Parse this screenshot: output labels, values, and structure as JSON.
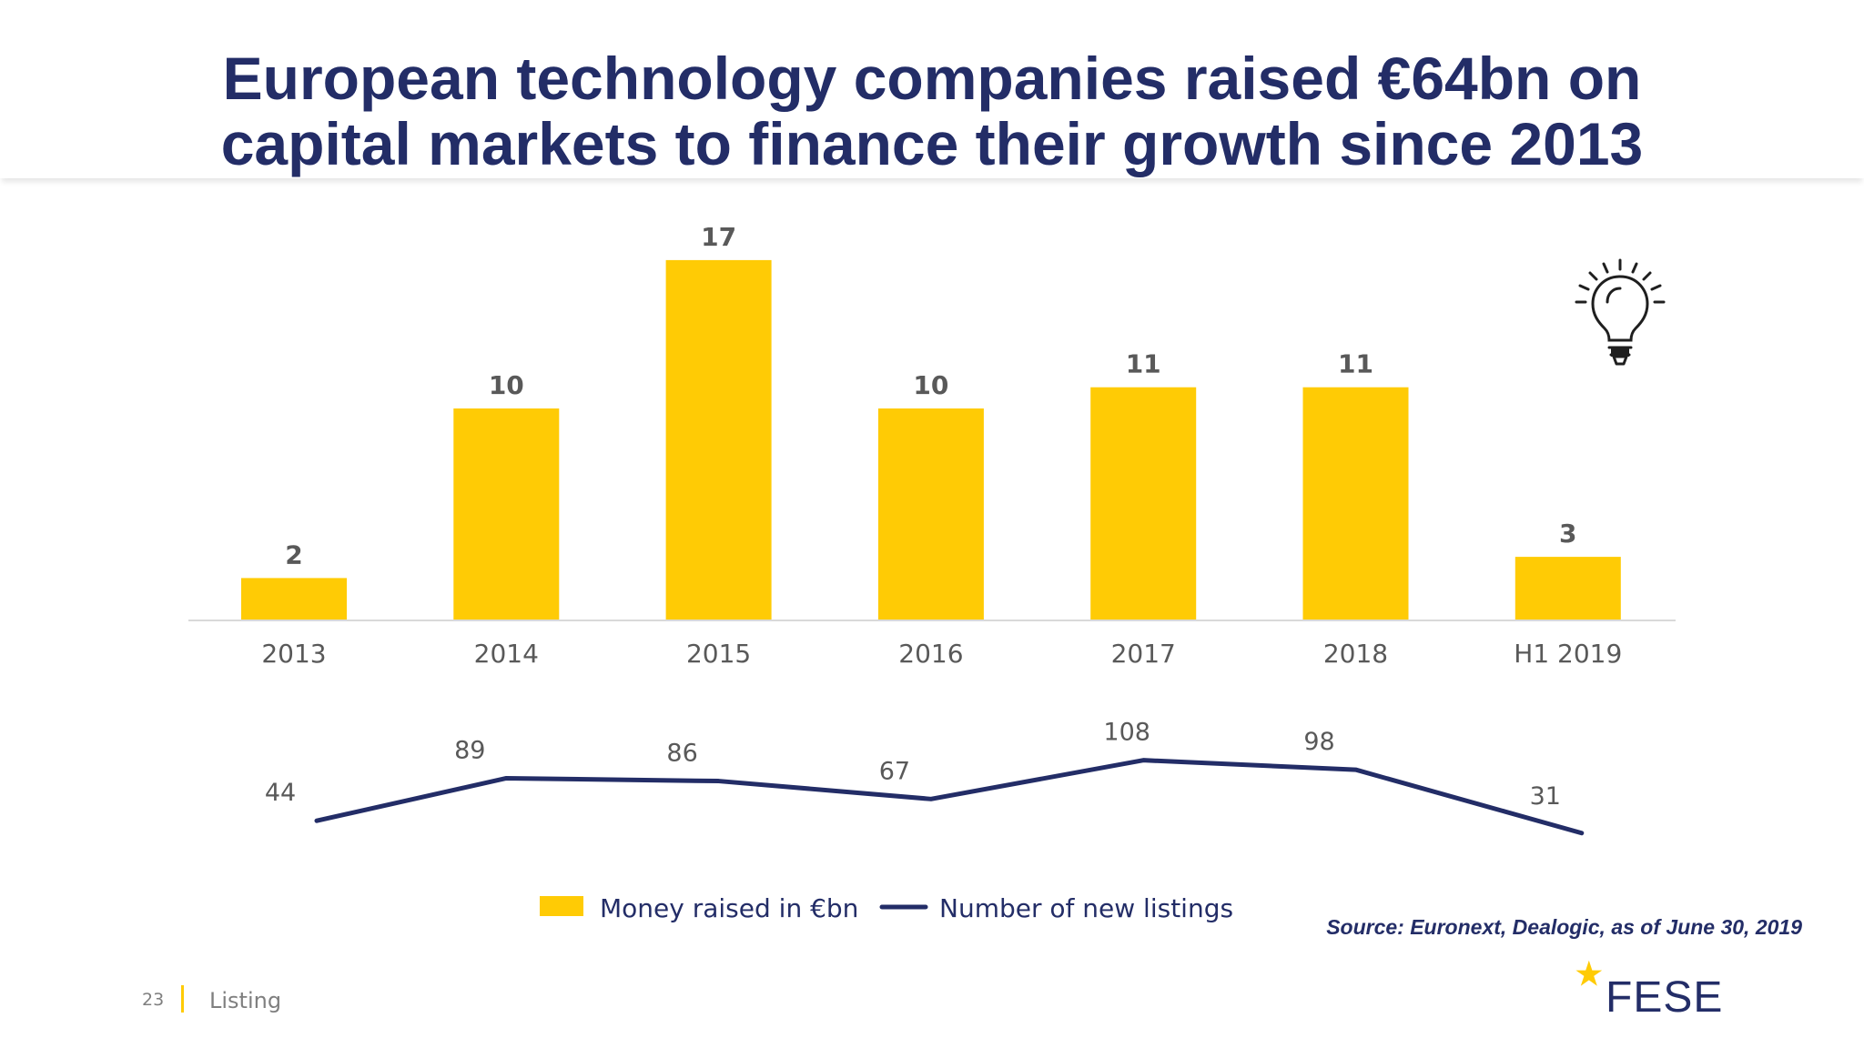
{
  "title": {
    "line1": "European technology companies raised €64bn on",
    "line2": "capital markets to finance their growth since 2013"
  },
  "chart_data": {
    "type": "bar",
    "categories": [
      "2013",
      "2014",
      "2015",
      "2016",
      "2017",
      "2018",
      "H1 2019"
    ],
    "series": [
      {
        "name": "Money raised in €bn",
        "type": "bar",
        "color": "#ffcb05",
        "values": [
          2,
          10,
          17,
          10,
          11,
          11,
          3
        ],
        "labels": [
          "2",
          "10",
          "17",
          "10",
          "11",
          "11",
          "3"
        ]
      },
      {
        "name": "Number of new listings",
        "type": "line",
        "color": "#232d67",
        "values": [
          44,
          89,
          86,
          67,
          108,
          98,
          31
        ],
        "labels": [
          "44",
          "89",
          "86",
          "67",
          "108",
          "98",
          "31"
        ]
      }
    ],
    "legend": {
      "placement": "bottom-center",
      "items": [
        "Money raised in €bn",
        "Number of new listings"
      ]
    }
  },
  "source": "Source: Euronext, Dealogic, as of June 30, 2019",
  "footer": {
    "page_number": "23",
    "section": "Listing"
  },
  "logo": {
    "text": "FESE"
  },
  "icons": {
    "idea": "lightbulb-icon",
    "logo_star": "star-icon"
  },
  "colors": {
    "title": "#232d67",
    "bar": "#ffcb05",
    "line": "#232d67",
    "axis": "#d9d9d9",
    "label": "#595959"
  }
}
